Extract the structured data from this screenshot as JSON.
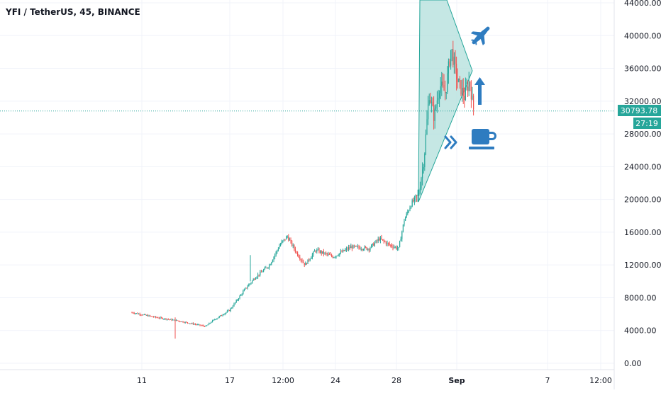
{
  "header": {
    "symbol_title": "YFI / TetherUS, 45, BINANCE"
  },
  "colors": {
    "up": "#26a69a",
    "down": "#ef5350",
    "grid": "#f0f3fa",
    "axis_text": "#131722",
    "price_line": "#26a69a",
    "price_badge": "#26a69a",
    "triangle_fill": "#b2dfdb",
    "triangle_stroke": "#26a69a",
    "icon_blue": "#2e7cc0"
  },
  "price_axis": {
    "ticks": [
      "0.00",
      "4000.00",
      "8000.00",
      "12000.00",
      "16000.00",
      "20000.00",
      "24000.00",
      "28000.00",
      "32000.00",
      "36000.00",
      "40000.00",
      "44000.00"
    ],
    "current_price": "30793.78",
    "countdown": "27:19"
  },
  "time_axis": {
    "labels": [
      "11",
      "17",
      "12:00",
      "24",
      "28",
      "Sep",
      "7",
      "12:00"
    ]
  },
  "chart_data": {
    "type": "candlestick",
    "title": "YFI / TetherUS, 45, BINANCE",
    "ylim": [
      0,
      44000
    ],
    "y_ticks": [
      0,
      4000,
      8000,
      12000,
      16000,
      20000,
      24000,
      28000,
      32000,
      36000,
      40000,
      44000
    ],
    "x_tick_labels": [
      "11",
      "17",
      "12:00",
      "24",
      "28",
      "Sep",
      "7",
      "12:00"
    ],
    "last_price": 30793.78,
    "series": [
      {
        "name": "YFI/USDT",
        "approx_close_path": [
          {
            "x": "11",
            "y": 6200
          },
          {
            "x": "14",
            "y": 5200
          },
          {
            "x": "16",
            "y": 4500
          },
          {
            "x": "17",
            "y": 6500
          },
          {
            "x": "19",
            "y": 9000
          },
          {
            "x": "20",
            "y": 11000
          },
          {
            "x": "21",
            "y": 13500
          },
          {
            "x": "22",
            "y": 15500
          },
          {
            "x": "23",
            "y": 13000
          },
          {
            "x": "24",
            "y": 13800
          },
          {
            "x": "25",
            "y": 13500
          },
          {
            "x": "26",
            "y": 14500
          },
          {
            "x": "27",
            "y": 15000
          },
          {
            "x": "28",
            "y": 16500
          },
          {
            "x": "29",
            "y": 19000
          },
          {
            "x": "30",
            "y": 27000
          },
          {
            "x": "31",
            "y": 34000
          },
          {
            "x": "Sep",
            "y": 37000
          },
          {
            "x": "Sep 2",
            "y": 30793.78
          }
        ]
      }
    ],
    "grid": true,
    "annotations": [
      "triangle",
      "airplane",
      "arrow-up",
      "double-chevron",
      "coffee-cup"
    ]
  }
}
